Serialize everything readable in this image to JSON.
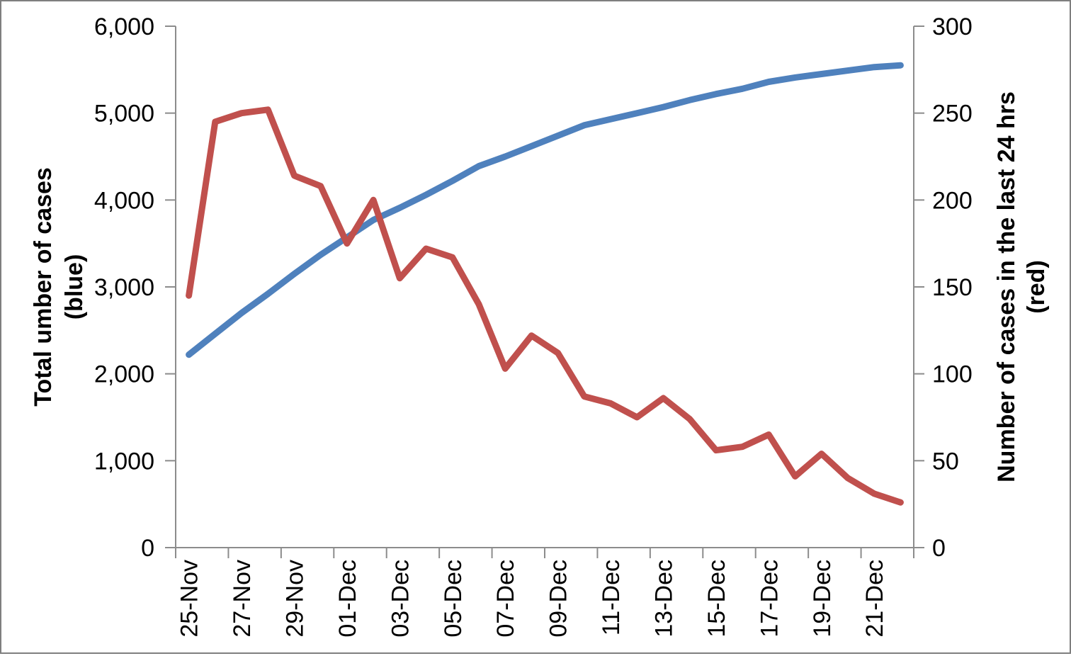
{
  "colors": {
    "total_cases_line": "#4F81BD",
    "new_cases_line": "#C0504D",
    "axis": "#8C8C8C",
    "background": "#FFFFFF",
    "frame_border": "#7F7F7F",
    "text": "#000000"
  },
  "chart_data": {
    "type": "line",
    "grid": "off",
    "legend": "none",
    "x_categories": [
      "25-Nov",
      "26-Nov",
      "27-Nov",
      "28-Nov",
      "29-Nov",
      "30-Nov",
      "01-Dec",
      "02-Dec",
      "03-Dec",
      "04-Dec",
      "05-Dec",
      "06-Dec",
      "07-Dec",
      "08-Dec",
      "09-Dec",
      "10-Dec",
      "11-Dec",
      "12-Dec",
      "13-Dec",
      "14-Dec",
      "15-Dec",
      "16-Dec",
      "17-Dec",
      "18-Dec",
      "19-Dec",
      "20-Dec",
      "21-Dec",
      "22-Dec"
    ],
    "x_tick_labels": [
      "25-Nov",
      "27-Nov",
      "29-Nov",
      "01-Dec",
      "03-Dec",
      "05-Dec",
      "07-Dec",
      "09-Dec",
      "11-Dec",
      "13-Dec",
      "15-Dec",
      "17-Dec",
      "19-Dec",
      "21-Dec"
    ],
    "x_label_every_n_categories": 2,
    "series": [
      {
        "name": "total-cases",
        "axis": "left",
        "color_key": "total_cases_line",
        "values": [
          2220,
          2460,
          2700,
          2920,
          3150,
          3370,
          3570,
          3770,
          3910,
          4060,
          4220,
          4390,
          4500,
          4620,
          4740,
          4860,
          4930,
          5000,
          5070,
          5150,
          5220,
          5280,
          5360,
          5410,
          5450,
          5490,
          5530,
          5550
        ]
      },
      {
        "name": "new-cases-24h",
        "axis": "right",
        "color_key": "new_cases_line",
        "values": [
          145,
          245,
          250,
          252,
          214,
          208,
          175,
          200,
          155,
          172,
          167,
          140,
          103,
          122,
          112,
          87,
          83,
          75,
          86,
          74,
          56,
          58,
          65,
          41,
          54,
          40,
          31,
          26
        ]
      }
    ],
    "left_axis": {
      "title_lines": [
        "Total umber of cases",
        "(blue)"
      ],
      "min": 0,
      "max": 6000,
      "tick_step": 1000,
      "tick_labels": [
        "0",
        "1,000",
        "2,000",
        "3,000",
        "4,000",
        "5,000",
        "6,000"
      ]
    },
    "right_axis": {
      "title_lines": [
        "Number of cases in the last 24 hrs",
        "(red)"
      ],
      "min": 0,
      "max": 300,
      "tick_step": 50,
      "tick_labels": [
        "0",
        "50",
        "100",
        "150",
        "200",
        "250",
        "300"
      ]
    }
  }
}
